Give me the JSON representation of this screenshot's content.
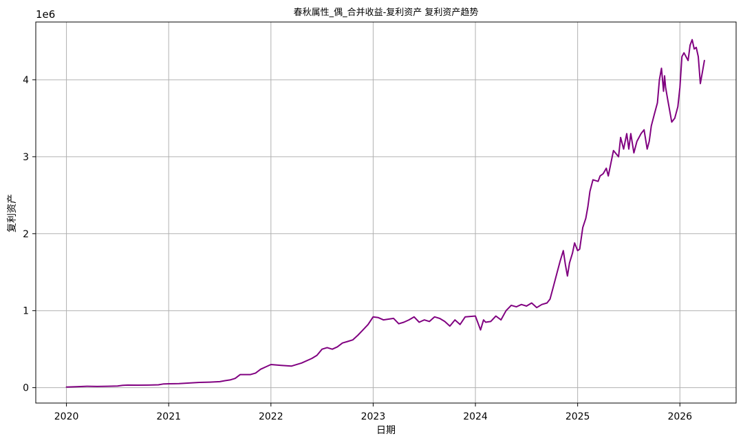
{
  "chart_data": {
    "type": "line",
    "title": "春秋属性_偶_合并收益-复利资产 复利资产趋势",
    "xlabel": "日期",
    "ylabel": "复利资产",
    "y_scale_label": "1e6",
    "ylim": [
      -0.2,
      4.75
    ],
    "y_ticks": [
      0,
      1,
      2,
      3,
      4
    ],
    "y_tick_labels": [
      "0",
      "1",
      "2",
      "3",
      "4"
    ],
    "xlim": [
      2019.7,
      2026.55
    ],
    "x_ticks": [
      2020,
      2021,
      2022,
      2023,
      2024,
      2025,
      2026
    ],
    "x_tick_labels": [
      "2020",
      "2021",
      "2022",
      "2023",
      "2024",
      "2025",
      "2026"
    ],
    "grid": true,
    "line_color": "#800080",
    "series": [
      {
        "x": [
          2020.0,
          2020.1,
          2020.2,
          2020.3,
          2020.4,
          2020.5,
          2020.55,
          2020.6,
          2020.7,
          2020.8,
          2020.9,
          2020.95,
          2021.0,
          2021.1,
          2021.2,
          2021.3,
          2021.4,
          2021.5,
          2021.55,
          2021.6,
          2021.65,
          2021.7,
          2021.8,
          2021.85,
          2021.9,
          2021.95,
          2022.0,
          2022.1,
          2022.2,
          2022.3,
          2022.4,
          2022.45,
          2022.5,
          2022.55,
          2022.6,
          2022.65,
          2022.7,
          2022.75,
          2022.8,
          2022.85,
          2022.9,
          2022.95,
          2023.0,
          2023.05,
          2023.1,
          2023.2,
          2023.25,
          2023.3,
          2023.35,
          2023.4,
          2023.45,
          2023.5,
          2023.55,
          2023.6,
          2023.65,
          2023.7,
          2023.75,
          2023.8,
          2023.85,
          2023.9,
          2024.0,
          2024.05,
          2024.08,
          2024.1,
          2024.15,
          2024.2,
          2024.25,
          2024.3,
          2024.35,
          2024.4,
          2024.45,
          2024.5,
          2024.55,
          2024.6,
          2024.65,
          2024.7,
          2024.73,
          2024.76,
          2024.8,
          2024.83,
          2024.86,
          2024.88,
          2024.9,
          2024.92,
          2024.95,
          2024.97,
          2025.0,
          2025.02,
          2025.05,
          2025.08,
          2025.1,
          2025.12,
          2025.15,
          2025.2,
          2025.22,
          2025.25,
          2025.28,
          2025.3,
          2025.35,
          2025.4,
          2025.42,
          2025.45,
          2025.48,
          2025.5,
          2025.52,
          2025.55,
          2025.58,
          2025.6,
          2025.62,
          2025.65,
          2025.68,
          2025.7,
          2025.72,
          2025.75,
          2025.78,
          2025.8,
          2025.82,
          2025.84,
          2025.85,
          2025.86,
          2025.88,
          2025.9,
          2025.92,
          2025.95,
          2025.98,
          2026.0,
          2026.02,
          2026.04,
          2026.06,
          2026.08,
          2026.1,
          2026.12,
          2026.14,
          2026.16,
          2026.18,
          2026.2,
          2026.22,
          2026.24
        ],
        "values": [
          0.008,
          0.012,
          0.018,
          0.015,
          0.018,
          0.022,
          0.03,
          0.033,
          0.032,
          0.033,
          0.037,
          0.048,
          0.05,
          0.052,
          0.06,
          0.068,
          0.072,
          0.078,
          0.09,
          0.1,
          0.12,
          0.17,
          0.17,
          0.19,
          0.24,
          0.27,
          0.3,
          0.29,
          0.28,
          0.32,
          0.38,
          0.42,
          0.5,
          0.52,
          0.5,
          0.53,
          0.58,
          0.6,
          0.62,
          0.68,
          0.75,
          0.82,
          0.92,
          0.91,
          0.88,
          0.9,
          0.83,
          0.85,
          0.88,
          0.92,
          0.85,
          0.88,
          0.86,
          0.92,
          0.9,
          0.86,
          0.8,
          0.88,
          0.82,
          0.92,
          0.93,
          0.75,
          0.88,
          0.85,
          0.86,
          0.93,
          0.88,
          1.0,
          1.07,
          1.05,
          1.08,
          1.06,
          1.1,
          1.04,
          1.08,
          1.1,
          1.15,
          1.3,
          1.5,
          1.65,
          1.78,
          1.6,
          1.45,
          1.62,
          1.75,
          1.88,
          1.78,
          1.8,
          2.08,
          2.2,
          2.35,
          2.55,
          2.7,
          2.68,
          2.75,
          2.78,
          2.85,
          2.75,
          3.08,
          3.0,
          3.25,
          3.1,
          3.3,
          3.1,
          3.3,
          3.05,
          3.2,
          3.25,
          3.3,
          3.35,
          3.1,
          3.2,
          3.4,
          3.55,
          3.7,
          4.0,
          4.15,
          3.85,
          4.05,
          3.9,
          3.75,
          3.6,
          3.45,
          3.5,
          3.65,
          3.9,
          4.3,
          4.35,
          4.3,
          4.25,
          4.45,
          4.52,
          4.4,
          4.42,
          4.3,
          3.95,
          4.1,
          4.25
        ]
      }
    ]
  }
}
